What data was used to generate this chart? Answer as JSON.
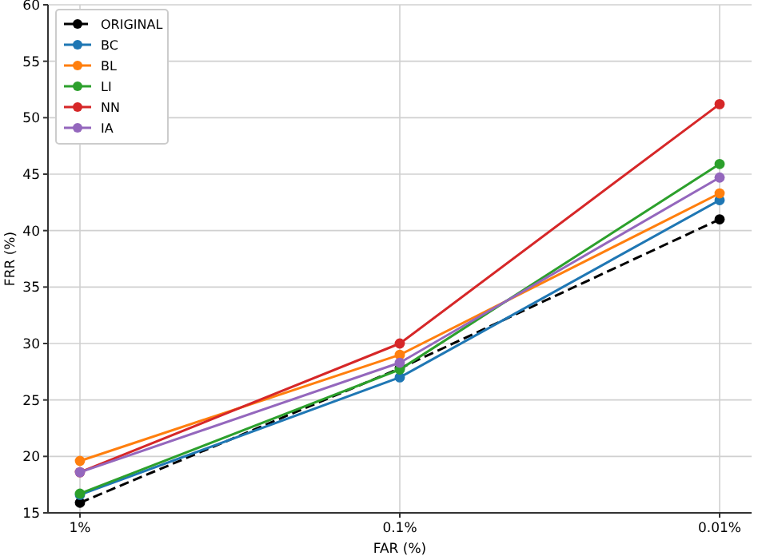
{
  "chart_data": {
    "type": "line",
    "xlabel": "FAR (%)",
    "ylabel": "FRR (%)",
    "categories": [
      "1%",
      "0.1%",
      "0.01%"
    ],
    "ylim": [
      15,
      60
    ],
    "yticks": [
      15,
      20,
      25,
      30,
      35,
      40,
      45,
      50,
      55,
      60
    ],
    "grid": true,
    "legend": "top left",
    "marker": "circle",
    "series": [
      {
        "name": "ORIGINAL",
        "color": "#000000",
        "line_style": "dashed",
        "values": [
          15.9,
          27.8,
          41.0
        ]
      },
      {
        "name": "BC",
        "color": "#1f77b4",
        "values": [
          16.6,
          27.0,
          42.7
        ]
      },
      {
        "name": "BL",
        "color": "#ff7f0e",
        "values": [
          19.6,
          29.0,
          43.3
        ]
      },
      {
        "name": "LI",
        "color": "#2ca02c",
        "values": [
          16.7,
          27.7,
          45.9
        ]
      },
      {
        "name": "NN",
        "color": "#d62728",
        "values": [
          18.6,
          30.0,
          51.2
        ]
      },
      {
        "name": "IA",
        "color": "#9467bd",
        "values": [
          18.6,
          28.3,
          44.7
        ]
      }
    ]
  }
}
